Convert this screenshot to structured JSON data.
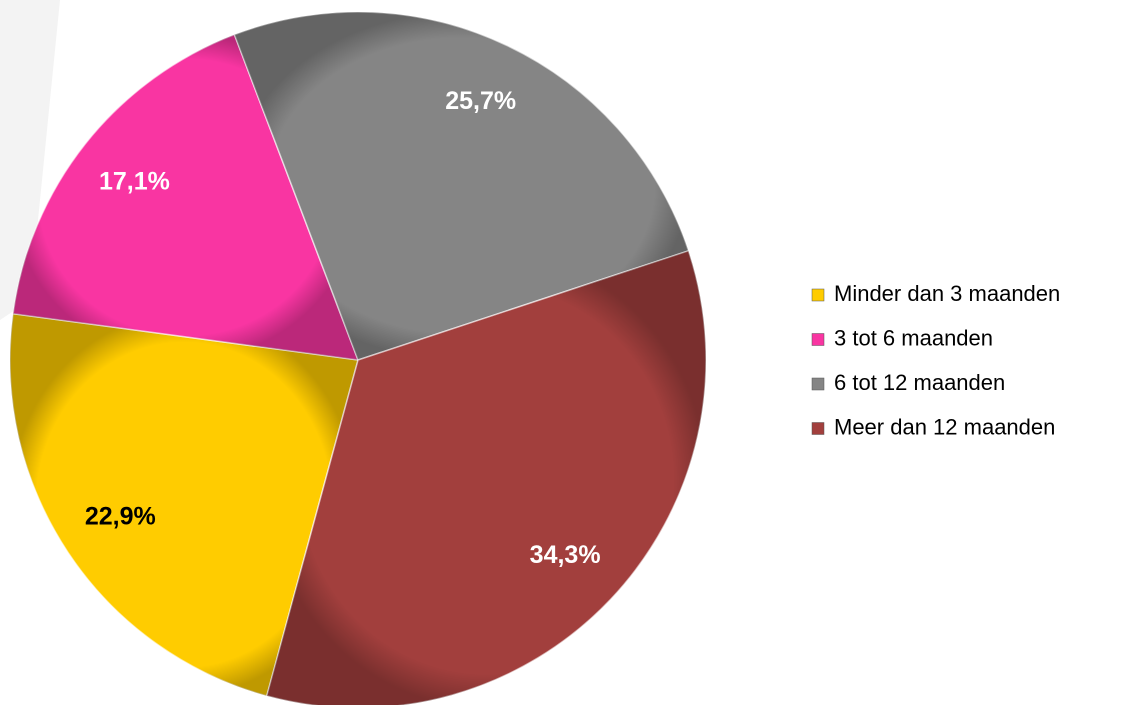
{
  "chart_data": {
    "type": "pie",
    "categories": [
      "Minder dan 3 maanden",
      "3 tot 6 maanden",
      "6 tot 12 maanden",
      "Meer dan 12 maanden"
    ],
    "values": [
      22.9,
      17.1,
      25.7,
      34.3
    ],
    "value_labels": [
      "22,9%",
      "17,1%",
      "25,7%",
      "34,3%"
    ],
    "colors": [
      "#ffcc00",
      "#f935a2",
      "#858585",
      "#a23f3d"
    ],
    "legend": "right"
  }
}
